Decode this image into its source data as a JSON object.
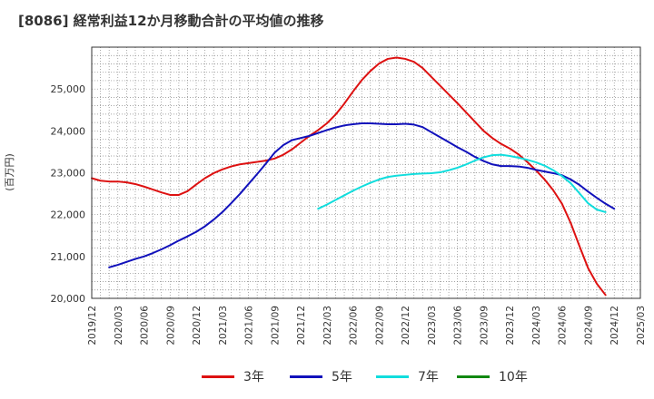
{
  "title": "[8086]  経常利益12か月移動合計の平均値の推移",
  "chart_data": {
    "type": "line",
    "title": "[8086]  経常利益12か月移動合計の平均値の推移",
    "ylabel": "(百万円)",
    "xlabel": "",
    "ylim": [
      20000,
      26000
    ],
    "yticks": [
      20000,
      21000,
      22000,
      23000,
      24000,
      25000
    ],
    "ytick_labels": [
      "20,000",
      "21,000",
      "22,000",
      "23,000",
      "24,000",
      "25,000"
    ],
    "xlim": [
      "2019-12",
      "2025-03"
    ],
    "xtick_labels": [
      "2019/12",
      "2020/03",
      "2020/06",
      "2020/09",
      "2020/12",
      "2021/03",
      "2021/06",
      "2021/09",
      "2021/12",
      "2022/03",
      "2022/06",
      "2022/09",
      "2022/12",
      "2023/03",
      "2023/06",
      "2023/09",
      "2023/12",
      "2024/03",
      "2024/06",
      "2024/09",
      "2024/12",
      "2025/03"
    ],
    "grid": true,
    "legend_position": "bottom",
    "series": [
      {
        "name": "3年",
        "color": "#dd1111",
        "points": [
          [
            "2019-12",
            22870
          ],
          [
            "2020-01",
            22810
          ],
          [
            "2020-02",
            22790
          ],
          [
            "2020-03",
            22790
          ],
          [
            "2020-04",
            22770
          ],
          [
            "2020-05",
            22730
          ],
          [
            "2020-06",
            22670
          ],
          [
            "2020-07",
            22600
          ],
          [
            "2020-08",
            22530
          ],
          [
            "2020-09",
            22470
          ],
          [
            "2020-10",
            22470
          ],
          [
            "2020-11",
            22560
          ],
          [
            "2020-12",
            22720
          ],
          [
            "2021-01",
            22870
          ],
          [
            "2021-02",
            22990
          ],
          [
            "2021-03",
            23080
          ],
          [
            "2021-04",
            23150
          ],
          [
            "2021-05",
            23200
          ],
          [
            "2021-06",
            23230
          ],
          [
            "2021-07",
            23260
          ],
          [
            "2021-08",
            23290
          ],
          [
            "2021-09",
            23340
          ],
          [
            "2021-10",
            23430
          ],
          [
            "2021-11",
            23560
          ],
          [
            "2021-12",
            23720
          ],
          [
            "2022-01",
            23880
          ],
          [
            "2022-02",
            24020
          ],
          [
            "2022-03",
            24180
          ],
          [
            "2022-04",
            24390
          ],
          [
            "2022-05",
            24650
          ],
          [
            "2022-06",
            24940
          ],
          [
            "2022-07",
            25210
          ],
          [
            "2022-08",
            25430
          ],
          [
            "2022-09",
            25610
          ],
          [
            "2022-10",
            25720
          ],
          [
            "2022-11",
            25750
          ],
          [
            "2022-12",
            25720
          ],
          [
            "2023-01",
            25650
          ],
          [
            "2023-02",
            25500
          ],
          [
            "2023-03",
            25290
          ],
          [
            "2023-04",
            25080
          ],
          [
            "2023-05",
            24870
          ],
          [
            "2023-06",
            24660
          ],
          [
            "2023-07",
            24440
          ],
          [
            "2023-08",
            24220
          ],
          [
            "2023-09",
            24000
          ],
          [
            "2023-10",
            23830
          ],
          [
            "2023-11",
            23690
          ],
          [
            "2023-12",
            23580
          ],
          [
            "2024-01",
            23440
          ],
          [
            "2024-02",
            23260
          ],
          [
            "2024-03",
            23060
          ],
          [
            "2024-04",
            22840
          ],
          [
            "2024-05",
            22580
          ],
          [
            "2024-06",
            22260
          ],
          [
            "2024-07",
            21800
          ],
          [
            "2024-08",
            21250
          ],
          [
            "2024-09",
            20720
          ],
          [
            "2024-10",
            20350
          ],
          [
            "2024-11",
            20080
          ]
        ]
      },
      {
        "name": "5年",
        "color": "#1111bb",
        "points": [
          [
            "2020-02",
            20740
          ],
          [
            "2020-03",
            20800
          ],
          [
            "2020-04",
            20870
          ],
          [
            "2020-05",
            20940
          ],
          [
            "2020-06",
            21000
          ],
          [
            "2020-07",
            21080
          ],
          [
            "2020-08",
            21170
          ],
          [
            "2020-09",
            21270
          ],
          [
            "2020-10",
            21380
          ],
          [
            "2020-11",
            21480
          ],
          [
            "2020-12",
            21590
          ],
          [
            "2021-01",
            21720
          ],
          [
            "2021-02",
            21880
          ],
          [
            "2021-03",
            22060
          ],
          [
            "2021-04",
            22270
          ],
          [
            "2021-05",
            22490
          ],
          [
            "2021-06",
            22730
          ],
          [
            "2021-07",
            22970
          ],
          [
            "2021-08",
            23220
          ],
          [
            "2021-09",
            23480
          ],
          [
            "2021-10",
            23660
          ],
          [
            "2021-11",
            23780
          ],
          [
            "2021-12",
            23830
          ],
          [
            "2022-01",
            23880
          ],
          [
            "2022-02",
            23950
          ],
          [
            "2022-03",
            24020
          ],
          [
            "2022-04",
            24080
          ],
          [
            "2022-05",
            24130
          ],
          [
            "2022-06",
            24160
          ],
          [
            "2022-07",
            24180
          ],
          [
            "2022-08",
            24180
          ],
          [
            "2022-09",
            24170
          ],
          [
            "2022-10",
            24160
          ],
          [
            "2022-11",
            24160
          ],
          [
            "2022-12",
            24170
          ],
          [
            "2023-01",
            24150
          ],
          [
            "2023-02",
            24090
          ],
          [
            "2023-03",
            23970
          ],
          [
            "2023-04",
            23850
          ],
          [
            "2023-05",
            23730
          ],
          [
            "2023-06",
            23610
          ],
          [
            "2023-07",
            23500
          ],
          [
            "2023-08",
            23380
          ],
          [
            "2023-09",
            23280
          ],
          [
            "2023-10",
            23200
          ],
          [
            "2023-11",
            23160
          ],
          [
            "2023-12",
            23160
          ],
          [
            "2024-01",
            23150
          ],
          [
            "2024-02",
            23120
          ],
          [
            "2024-03",
            23070
          ],
          [
            "2024-04",
            23030
          ],
          [
            "2024-05",
            22990
          ],
          [
            "2024-06",
            22940
          ],
          [
            "2024-07",
            22840
          ],
          [
            "2024-08",
            22710
          ],
          [
            "2024-09",
            22550
          ],
          [
            "2024-10",
            22400
          ],
          [
            "2024-11",
            22260
          ],
          [
            "2024-12",
            22140
          ]
        ]
      },
      {
        "name": "7年",
        "color": "#11dddd",
        "points": [
          [
            "2022-02",
            22140
          ],
          [
            "2022-03",
            22240
          ],
          [
            "2022-04",
            22350
          ],
          [
            "2022-05",
            22460
          ],
          [
            "2022-06",
            22570
          ],
          [
            "2022-07",
            22670
          ],
          [
            "2022-08",
            22760
          ],
          [
            "2022-09",
            22840
          ],
          [
            "2022-10",
            22900
          ],
          [
            "2022-11",
            22930
          ],
          [
            "2022-12",
            22950
          ],
          [
            "2023-01",
            22970
          ],
          [
            "2023-02",
            22980
          ],
          [
            "2023-03",
            22990
          ],
          [
            "2023-04",
            23010
          ],
          [
            "2023-05",
            23060
          ],
          [
            "2023-06",
            23120
          ],
          [
            "2023-07",
            23200
          ],
          [
            "2023-08",
            23290
          ],
          [
            "2023-09",
            23370
          ],
          [
            "2023-10",
            23420
          ],
          [
            "2023-11",
            23430
          ],
          [
            "2023-12",
            23400
          ],
          [
            "2024-01",
            23360
          ],
          [
            "2024-02",
            23310
          ],
          [
            "2024-03",
            23250
          ],
          [
            "2024-04",
            23170
          ],
          [
            "2024-05",
            23060
          ],
          [
            "2024-06",
            22920
          ],
          [
            "2024-07",
            22750
          ],
          [
            "2024-08",
            22510
          ],
          [
            "2024-09",
            22270
          ],
          [
            "2024-10",
            22120
          ],
          [
            "2024-11",
            22060
          ]
        ]
      },
      {
        "name": "10年",
        "color": "#118811",
        "points": []
      }
    ]
  }
}
